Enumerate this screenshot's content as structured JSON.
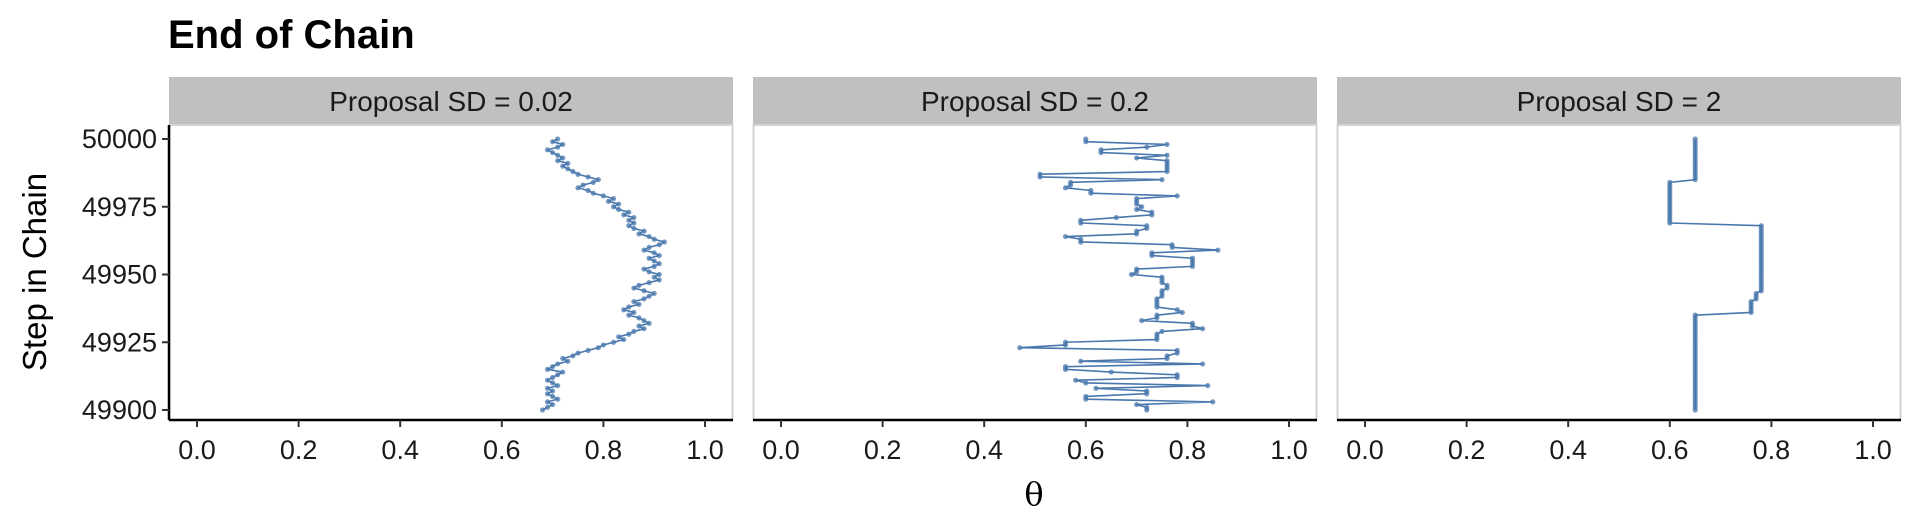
{
  "chart_data": {
    "type": "line",
    "title": "End of Chain",
    "xlabel": "θ",
    "ylabel": "Step in Chain",
    "xlim": [
      0,
      1
    ],
    "ylim": [
      49899,
      50001
    ],
    "x_ticks": [
      "0.0",
      "0.2",
      "0.4",
      "0.6",
      "0.8",
      "1.0"
    ],
    "x_tick_values": [
      0,
      0.2,
      0.4,
      0.6,
      0.8,
      1.0
    ],
    "y_ticks": [
      "49900",
      "49925",
      "49950",
      "49975",
      "50000"
    ],
    "y_tick_values": [
      49900,
      49925,
      49950,
      49975,
      50000
    ],
    "color": "#4a78ad",
    "panels": [
      {
        "label": "Proposal SD = 0.02",
        "steps_start": 49900,
        "theta": [
          0.68,
          0.69,
          0.7,
          0.69,
          0.71,
          0.7,
          0.69,
          0.7,
          0.69,
          0.71,
          0.7,
          0.69,
          0.7,
          0.71,
          0.72,
          0.69,
          0.7,
          0.71,
          0.73,
          0.72,
          0.74,
          0.75,
          0.77,
          0.79,
          0.8,
          0.82,
          0.84,
          0.83,
          0.85,
          0.86,
          0.88,
          0.87,
          0.89,
          0.88,
          0.87,
          0.85,
          0.86,
          0.84,
          0.85,
          0.87,
          0.86,
          0.88,
          0.89,
          0.9,
          0.88,
          0.86,
          0.87,
          0.89,
          0.91,
          0.9,
          0.91,
          0.89,
          0.88,
          0.9,
          0.91,
          0.9,
          0.89,
          0.91,
          0.9,
          0.88,
          0.89,
          0.91,
          0.92,
          0.9,
          0.89,
          0.87,
          0.88,
          0.86,
          0.85,
          0.86,
          0.85,
          0.86,
          0.84,
          0.85,
          0.83,
          0.82,
          0.83,
          0.81,
          0.82,
          0.8,
          0.78,
          0.77,
          0.75,
          0.76,
          0.78,
          0.79,
          0.77,
          0.75,
          0.74,
          0.73,
          0.72,
          0.73,
          0.71,
          0.72,
          0.71,
          0.7,
          0.69,
          0.71,
          0.72,
          0.7,
          0.71
        ]
      },
      {
        "label": "Proposal SD = 0.2",
        "steps_start": 49900,
        "theta": [
          0.72,
          0.72,
          0.7,
          0.85,
          0.6,
          0.6,
          0.72,
          0.72,
          0.62,
          0.84,
          0.6,
          0.58,
          0.78,
          0.78,
          0.65,
          0.56,
          0.56,
          0.83,
          0.59,
          0.76,
          0.76,
          0.78,
          0.78,
          0.47,
          0.56,
          0.56,
          0.74,
          0.74,
          0.74,
          0.75,
          0.83,
          0.81,
          0.81,
          0.71,
          0.74,
          0.74,
          0.79,
          0.78,
          0.74,
          0.74,
          0.74,
          0.74,
          0.75,
          0.75,
          0.75,
          0.76,
          0.76,
          0.75,
          0.75,
          0.75,
          0.69,
          0.7,
          0.7,
          0.81,
          0.81,
          0.81,
          0.81,
          0.73,
          0.73,
          0.86,
          0.77,
          0.77,
          0.59,
          0.59,
          0.56,
          0.7,
          0.7,
          0.72,
          0.72,
          0.59,
          0.59,
          0.66,
          0.73,
          0.73,
          0.7,
          0.71,
          0.7,
          0.7,
          0.7,
          0.78,
          0.61,
          0.61,
          0.56,
          0.57,
          0.57,
          0.75,
          0.51,
          0.51,
          0.76,
          0.76,
          0.76,
          0.76,
          0.76,
          0.7,
          0.76,
          0.63,
          0.63,
          0.72,
          0.76,
          0.6,
          0.6
        ]
      },
      {
        "label": "Proposal SD = 2",
        "steps_start": 49900,
        "theta": [
          0.65,
          0.65,
          0.65,
          0.65,
          0.65,
          0.65,
          0.65,
          0.65,
          0.65,
          0.65,
          0.65,
          0.65,
          0.65,
          0.65,
          0.65,
          0.65,
          0.65,
          0.65,
          0.65,
          0.65,
          0.65,
          0.65,
          0.65,
          0.65,
          0.65,
          0.65,
          0.65,
          0.65,
          0.65,
          0.65,
          0.65,
          0.65,
          0.65,
          0.65,
          0.65,
          0.65,
          0.76,
          0.76,
          0.76,
          0.76,
          0.76,
          0.77,
          0.77,
          0.77,
          0.78,
          0.78,
          0.78,
          0.78,
          0.78,
          0.78,
          0.78,
          0.78,
          0.78,
          0.78,
          0.78,
          0.78,
          0.78,
          0.78,
          0.78,
          0.78,
          0.78,
          0.78,
          0.78,
          0.78,
          0.78,
          0.78,
          0.78,
          0.78,
          0.78,
          0.6,
          0.6,
          0.6,
          0.6,
          0.6,
          0.6,
          0.6,
          0.6,
          0.6,
          0.6,
          0.6,
          0.6,
          0.6,
          0.6,
          0.6,
          0.6,
          0.65,
          0.65,
          0.65,
          0.65,
          0.65,
          0.65,
          0.65,
          0.65,
          0.65,
          0.65,
          0.65,
          0.65,
          0.65,
          0.65,
          0.65,
          0.65
        ]
      }
    ]
  }
}
